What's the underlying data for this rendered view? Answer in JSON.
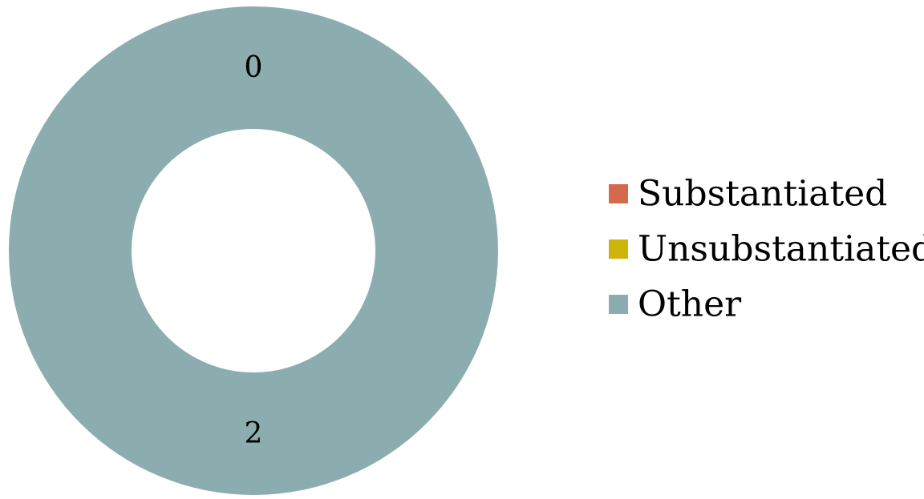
{
  "chart_data": {
    "type": "pie",
    "variant": "donut",
    "categories": [
      "Substantiated",
      "Unsubstantiated",
      "Other"
    ],
    "values": [
      0,
      0,
      2
    ],
    "colors": [
      "#d4694e",
      "#cdb60c",
      "#8cadaf"
    ],
    "data_labels": [
      "0",
      "0",
      "2"
    ],
    "legend": {
      "position": "right",
      "entries": [
        "Substantiated",
        "Unsubstantiated",
        "Other"
      ]
    }
  }
}
